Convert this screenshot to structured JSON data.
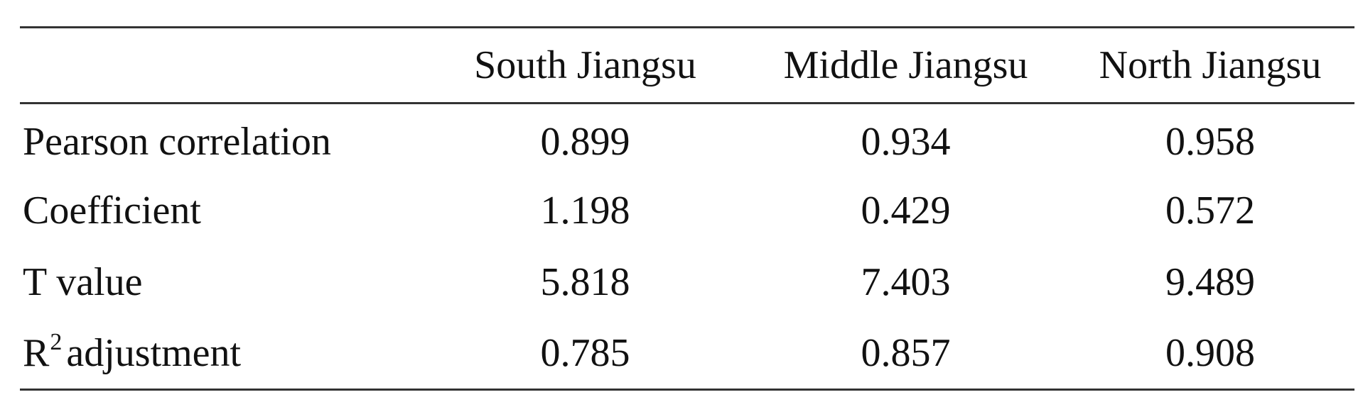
{
  "table": {
    "columns": [
      "",
      "South Jiangsu",
      "Middle Jiangsu",
      "North Jiangsu"
    ],
    "rows": [
      {
        "label": "Pearson correlation",
        "values": [
          "0.899",
          "0.934",
          "0.958"
        ]
      },
      {
        "label": "Coefficient",
        "values": [
          "1.198",
          "0.429",
          "0.572"
        ]
      },
      {
        "label": "T value",
        "values": [
          "5.818",
          "7.403",
          "9.489"
        ]
      },
      {
        "label_base": "R",
        "label_sup": "2",
        "label_rest": "adjustment",
        "values": [
          "0.785",
          "0.857",
          "0.908"
        ]
      }
    ]
  }
}
